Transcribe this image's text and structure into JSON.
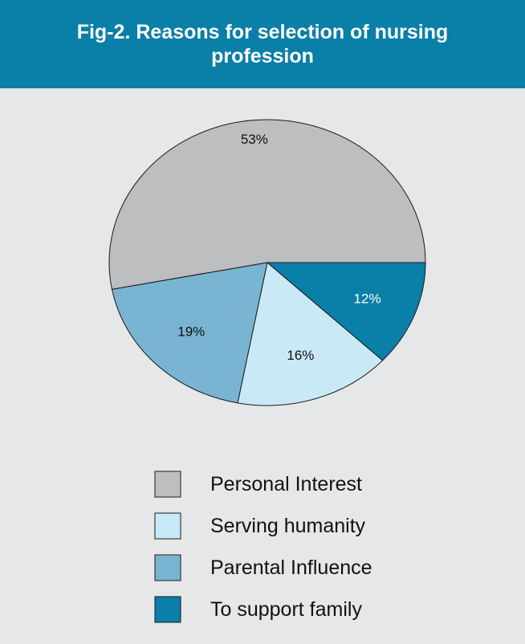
{
  "title": "Fig-2. Reasons for selection of nursing profession",
  "colors": {
    "title_bar": "#0a7fa7",
    "background": "#e6e7e8"
  },
  "chart_data": {
    "type": "pie",
    "title": "Fig-2. Reasons for selection of nursing profession",
    "legend_position": "bottom",
    "slices": [
      {
        "label": "Personal Interest",
        "value": 53,
        "display": "53%",
        "color": "#bdbec0",
        "label_color": "#111111"
      },
      {
        "label": "Serving humanity",
        "value": 16,
        "display": "16%",
        "color": "#c9e9f7",
        "label_color": "#111111"
      },
      {
        "label": "Parental Influence",
        "value": 19,
        "display": "19%",
        "color": "#79b4d2",
        "label_color": "#111111"
      },
      {
        "label": "To support family",
        "value": 12,
        "display": "12%",
        "color": "#0a7fa7",
        "label_color": "#ffffff"
      }
    ]
  }
}
